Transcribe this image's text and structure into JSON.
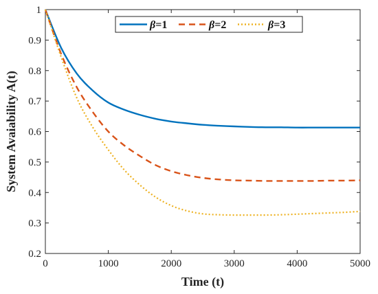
{
  "chart_data": {
    "type": "line",
    "title": "",
    "xlabel": "Time (t)",
    "ylabel": "System Avaiability A(t)",
    "xlim": [
      0,
      5000
    ],
    "ylim": [
      0.2,
      1.0
    ],
    "x_ticks": [
      0,
      1000,
      2000,
      3000,
      4000,
      5000
    ],
    "y_ticks": [
      0.2,
      0.3,
      0.4,
      0.5,
      0.6,
      0.7,
      0.8,
      0.9,
      1.0
    ],
    "x_tick_labels": [
      "0",
      "1000",
      "2000",
      "3000",
      "4000",
      "5000"
    ],
    "y_tick_labels": [
      "0.2",
      "0.3",
      "0.4",
      "0.5",
      "0.6",
      "0.7",
      "0.8",
      "0.9",
      "1"
    ],
    "grid": false,
    "legend": {
      "placement": "top-center",
      "orientation": "horizontal"
    },
    "x": [
      0,
      250,
      500,
      750,
      1000,
      1250,
      1500,
      1750,
      2000,
      2250,
      2500,
      2750,
      3000,
      3250,
      3500,
      3750,
      4000,
      4250,
      4500,
      4750,
      5000
    ],
    "series": [
      {
        "name": "β=1",
        "color": "#0072BD",
        "style": "solid",
        "values": [
          1.0,
          0.875,
          0.79,
          0.735,
          0.695,
          0.672,
          0.655,
          0.642,
          0.633,
          0.627,
          0.622,
          0.619,
          0.617,
          0.615,
          0.614,
          0.614,
          0.613,
          0.613,
          0.613,
          0.613,
          0.613
        ]
      },
      {
        "name": "β=2",
        "color": "#D95319",
        "style": "dashed",
        "values": [
          1.0,
          0.855,
          0.745,
          0.665,
          0.6,
          0.555,
          0.52,
          0.49,
          0.47,
          0.457,
          0.448,
          0.443,
          0.44,
          0.439,
          0.438,
          0.438,
          0.438,
          0.438,
          0.439,
          0.439,
          0.44
        ]
      },
      {
        "name": "β=3",
        "color": "#EDB120",
        "style": "dotted",
        "values": [
          1.0,
          0.845,
          0.71,
          0.615,
          0.54,
          0.475,
          0.425,
          0.385,
          0.357,
          0.34,
          0.33,
          0.327,
          0.326,
          0.326,
          0.326,
          0.327,
          0.329,
          0.331,
          0.333,
          0.335,
          0.338
        ]
      }
    ]
  }
}
